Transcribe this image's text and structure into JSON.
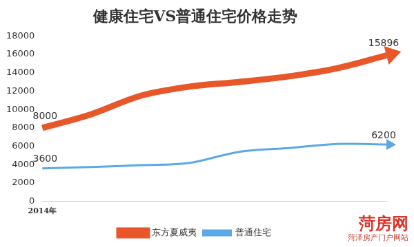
{
  "chart_data": {
    "type": "line",
    "title": "健康住宅VS普通住宅价格走势",
    "categories": [
      "2014年",
      null,
      null,
      null,
      null,
      null,
      null,
      null
    ],
    "series": [
      {
        "name": "东方夏威夷",
        "color": "#e8572a",
        "values": [
          8000,
          9500,
          11500,
          12500,
          13000,
          13600,
          14500,
          15896
        ],
        "value_labels": [
          "8000",
          null,
          null,
          null,
          null,
          null,
          null,
          "15896"
        ]
      },
      {
        "name": "普通住宅",
        "color": "#5aa9e6",
        "values": [
          3600,
          3750,
          3950,
          4200,
          5400,
          5800,
          6250,
          6200
        ],
        "value_labels": [
          "3600",
          null,
          null,
          null,
          null,
          null,
          null,
          "6200"
        ]
      }
    ],
    "ylim": [
      0,
      18000
    ],
    "yticks": [
      0,
      2000,
      4000,
      6000,
      8000,
      10000,
      12000,
      14000,
      16000,
      18000
    ],
    "grid": false,
    "legend": "bottom",
    "annotations": [
      "菏房网",
      "菏泽房产门户网站"
    ]
  }
}
